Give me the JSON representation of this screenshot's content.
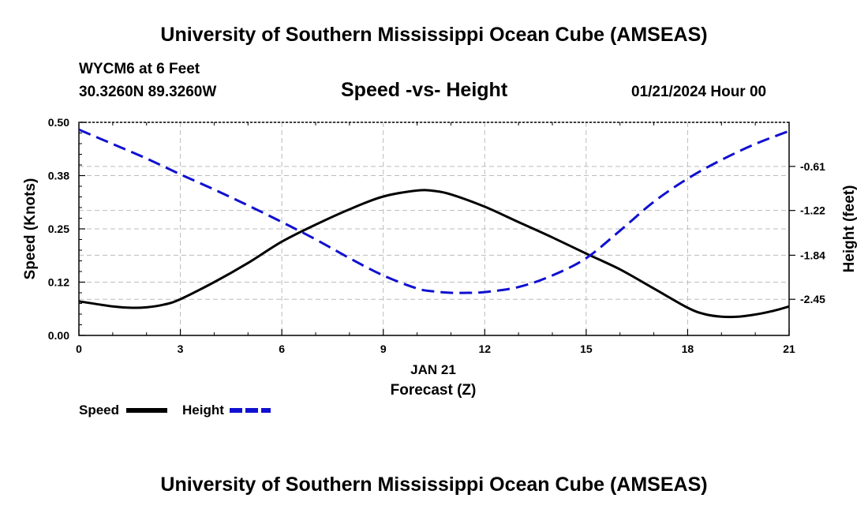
{
  "header": {
    "title": "University of Southern Mississippi Ocean Cube (AMSEAS)",
    "station": "WYCM6 at 6 Feet",
    "coords": "30.3260N  89.3260W",
    "datetime": "01/21/2024 Hour 00"
  },
  "footer": {
    "title": "University of Southern Mississippi Ocean Cube (AMSEAS)"
  },
  "chart_data": {
    "type": "line",
    "title": "Speed -vs- Height",
    "xlabel": "Forecast (Z)",
    "xdate_label": "JAN 21",
    "ylabel": "Speed (Knots)",
    "y2label": "Height (feet)",
    "xlim": [
      0,
      21
    ],
    "ylim": [
      0,
      0.5
    ],
    "y2lim": [
      -2.95,
      0
    ],
    "x_ticks": [
      "0",
      "3",
      "6",
      "9",
      "12",
      "15",
      "18",
      "21"
    ],
    "x_tick_values": [
      0,
      3,
      6,
      9,
      12,
      15,
      18,
      21
    ],
    "y_ticks": [
      "0.00",
      "0.12",
      "0.25",
      "0.38",
      "0.50"
    ],
    "y_tick_values": [
      0,
      0.125,
      0.25,
      0.375,
      0.5
    ],
    "y2_ticks": [
      "-0.61",
      "-1.22",
      "-1.84",
      "-2.45"
    ],
    "y2_tick_values": [
      -0.61,
      -1.22,
      -1.84,
      -2.45
    ],
    "grid": true,
    "series": [
      {
        "name": "Speed",
        "color": "#000000",
        "dash": "solid",
        "axis": "left",
        "x": [
          0,
          1,
          1.5,
          2,
          2.5,
          3,
          4,
          5,
          6,
          7,
          8,
          9,
          10,
          10.5,
          11,
          12,
          13,
          14,
          15,
          16,
          17,
          18,
          18.5,
          19,
          19.5,
          20,
          20.5,
          21
        ],
        "values": [
          0.08,
          0.068,
          0.065,
          0.066,
          0.072,
          0.085,
          0.125,
          0.17,
          0.22,
          0.26,
          0.296,
          0.326,
          0.34,
          0.339,
          0.331,
          0.302,
          0.266,
          0.23,
          0.192,
          0.155,
          0.11,
          0.065,
          0.05,
          0.044,
          0.044,
          0.049,
          0.057,
          0.068
        ]
      },
      {
        "name": "Height",
        "color": "#1010d0",
        "dash": "dashed",
        "axis": "right",
        "x": [
          0,
          1,
          2,
          3,
          4,
          5,
          6,
          7,
          8,
          9,
          10,
          10.5,
          11,
          11.5,
          12,
          13,
          14,
          15,
          16,
          17,
          18,
          19,
          20,
          21
        ],
        "values": [
          -0.1,
          -0.3,
          -0.5,
          -0.72,
          -0.93,
          -1.15,
          -1.38,
          -1.62,
          -1.88,
          -2.12,
          -2.3,
          -2.34,
          -2.36,
          -2.36,
          -2.35,
          -2.28,
          -2.12,
          -1.88,
          -1.5,
          -1.1,
          -0.78,
          -0.52,
          -0.3,
          -0.12
        ]
      }
    ],
    "legend": [
      {
        "label": "Speed",
        "color": "#000000",
        "dash": "solid"
      },
      {
        "label": "Height",
        "color": "#1010d0",
        "dash": "dashed"
      }
    ]
  }
}
